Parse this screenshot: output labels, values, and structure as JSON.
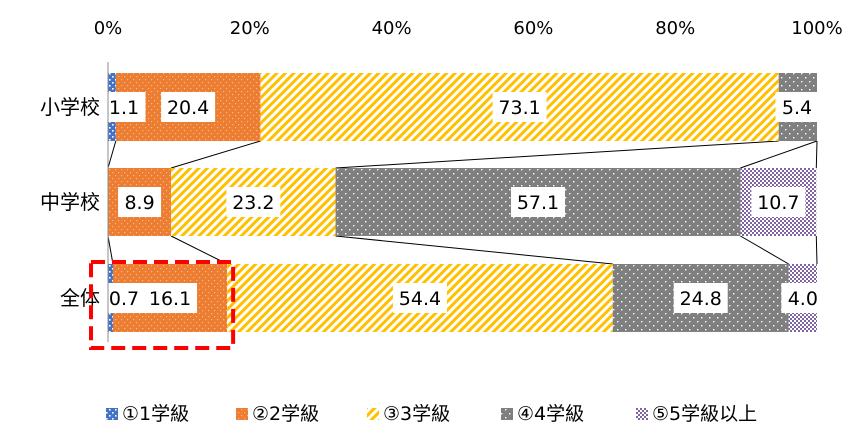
{
  "chart_data": {
    "type": "bar",
    "orientation": "horizontal",
    "stacked_percent": true,
    "categories": [
      "小学校",
      "中学校",
      "全体"
    ],
    "series": [
      {
        "name": "①1学級",
        "values": [
          1.1,
          0,
          0.7
        ],
        "color": "#4472C4",
        "pattern": "dots"
      },
      {
        "name": "②2学級",
        "values": [
          20.4,
          8.9,
          16.1
        ],
        "color": "#ED7D31",
        "pattern": "dots"
      },
      {
        "name": "③3学級",
        "values": [
          73.1,
          23.2,
          54.4
        ],
        "color": "#FFC000",
        "pattern": "diagonal"
      },
      {
        "name": "④4学級",
        "values": [
          5.4,
          57.1,
          24.8
        ],
        "color": "#7F7F7F",
        "pattern": "dots"
      },
      {
        "name": "⑤5学級以上",
        "values": [
          0,
          10.7,
          4.0
        ],
        "color": "#8064A2",
        "pattern": "grid"
      }
    ],
    "data_labels": [
      [
        "1.1",
        "20.4",
        "73.1",
        "5.4",
        ""
      ],
      [
        "",
        "8.9",
        "23.2",
        "57.1",
        "10.7"
      ],
      [
        "0.7",
        "16.1",
        "54.4",
        "24.8",
        "4.0"
      ]
    ],
    "x_ticks": [
      "0%",
      "20%",
      "40%",
      "60%",
      "80%",
      "100%"
    ],
    "xlim": [
      0,
      100
    ],
    "legend_position": "bottom",
    "highlight": "dashed red box around 全体 ①1学級 and ②2学級 segments"
  }
}
